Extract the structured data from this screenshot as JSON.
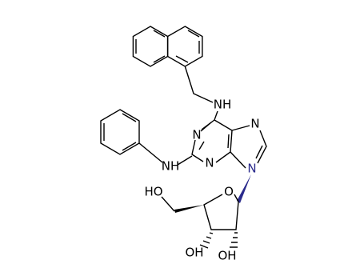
{
  "atoms": [
    "NH",
    "N",
    "N",
    "N",
    "N",
    "NH",
    "O",
    "HO",
    "OH",
    "OH"
  ]
}
